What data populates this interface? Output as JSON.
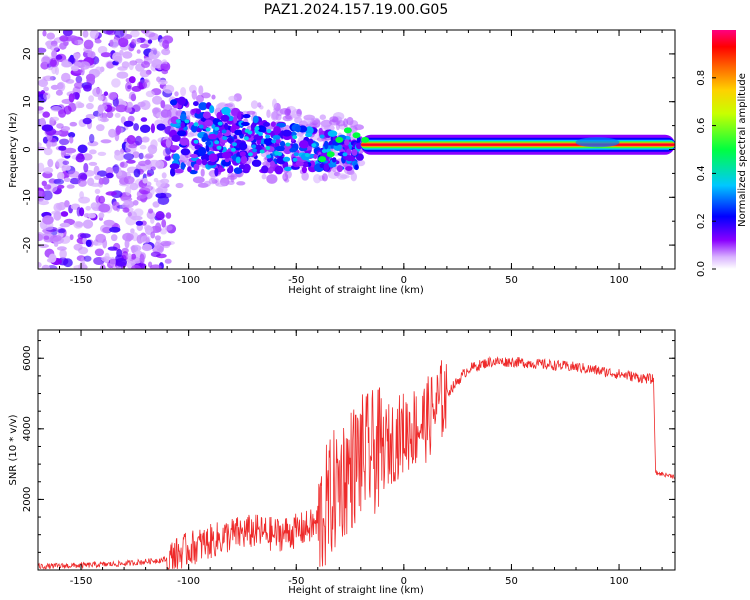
{
  "title": "PAZ1.2024.157.19.00.G05",
  "colors": {
    "snr_line": "#ee2a2a",
    "axis": "#000000"
  },
  "chart_data": [
    {
      "type": "heatmap",
      "xlabel": "Height of straight line (km)",
      "ylabel": "Frequency (Hz)",
      "xlim": [
        -170,
        126
      ],
      "ylim": [
        -25,
        25
      ],
      "xticks": [
        -150,
        -100,
        -50,
        0,
        50,
        100
      ],
      "yticks": [
        -20,
        -10,
        0,
        10,
        20
      ],
      "colorbar": {
        "label": "Normalized spectral amplitude",
        "range": [
          0,
          1
        ],
        "ticks": [
          0.0,
          0.2,
          0.4,
          0.6,
          0.8
        ]
      },
      "features": [
        {
          "kind": "scatter",
          "x_range": [
            -170,
            -108
          ],
          "y_range": [
            -25,
            25
          ],
          "amplitude": 0.1
        },
        {
          "kind": "cluster",
          "x_range": [
            -108,
            -20
          ],
          "y_range": [
            -8,
            10
          ],
          "amplitude": 0.25
        },
        {
          "kind": "signal",
          "x_range": [
            -20,
            126
          ],
          "frequency": 1.0,
          "amplitude": 1.0
        }
      ]
    },
    {
      "type": "line",
      "xlabel": "Height of straight line (km)",
      "ylabel": "SNR (10 * v/v)",
      "xlim": [
        -170,
        126
      ],
      "ylim": [
        0,
        6800
      ],
      "xticks": [
        -150,
        -100,
        -50,
        0,
        50,
        100
      ],
      "yticks": [
        2000,
        4000,
        6000
      ],
      "series": [
        {
          "x": [
            -170,
            -150,
            -130,
            -110,
            -100,
            -90,
            -80,
            -70,
            -60,
            -50,
            -40,
            -30,
            -20,
            -10,
            0,
            10,
            20,
            30,
            40,
            50,
            60,
            70,
            80,
            90,
            100,
            110,
            116,
            117,
            126
          ],
          "values": [
            100,
            130,
            180,
            300,
            600,
            800,
            1000,
            1100,
            1000,
            1100,
            1300,
            2500,
            3200,
            3400,
            3900,
            4200,
            5000,
            5700,
            5900,
            5900,
            5850,
            5800,
            5750,
            5650,
            5550,
            5450,
            5400,
            2750,
            2650
          ]
        }
      ]
    }
  ]
}
